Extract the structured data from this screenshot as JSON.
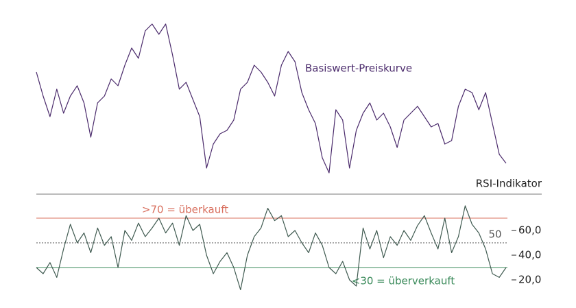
{
  "chart_data": [
    {
      "type": "line",
      "ylim": [
        0,
        250
      ],
      "series": [
        {
          "name": "Basiswert-Preiskurve",
          "color": "#4a2a6b",
          "values": [
            160,
            125,
            95,
            135,
            100,
            125,
            140,
            115,
            65,
            115,
            125,
            150,
            140,
            170,
            195,
            180,
            220,
            230,
            215,
            230,
            185,
            135,
            145,
            120,
            95,
            20,
            55,
            70,
            75,
            90,
            135,
            145,
            170,
            160,
            145,
            125,
            170,
            190,
            175,
            130,
            105,
            85,
            35,
            13,
            105,
            90,
            20,
            75,
            100,
            115,
            90,
            100,
            80,
            50,
            90,
            100,
            110,
            95,
            80,
            85,
            55,
            60,
            110,
            135,
            130,
            105,
            130,
            85,
            40,
            27
          ]
        }
      ]
    },
    {
      "type": "line",
      "title": "RSI-Indikator",
      "ylim": [
        8,
        82
      ],
      "yticks": [
        {
          "value": 20,
          "label": "20,0"
        },
        {
          "value": 40,
          "label": "40,0"
        },
        {
          "value": 60,
          "label": "60,0"
        }
      ],
      "hlines": [
        {
          "value": 70,
          "label": ">70 = überkauft",
          "color": "#d9705f",
          "style": "solid"
        },
        {
          "value": 50,
          "label": "50",
          "color": "#555555",
          "style": "dashed"
        },
        {
          "value": 30,
          "label": "<30 = überverkauft",
          "color": "#3a8a5a",
          "style": "solid"
        }
      ],
      "series": [
        {
          "color": "#3f5a50",
          "values": [
            30,
            25,
            34,
            22,
            45,
            65,
            50,
            58,
            42,
            62,
            48,
            55,
            30,
            60,
            52,
            66,
            55,
            62,
            70,
            58,
            66,
            48,
            72,
            60,
            65,
            40,
            25,
            35,
            42,
            30,
            12,
            40,
            55,
            62,
            78,
            68,
            72,
            55,
            60,
            50,
            42,
            58,
            48,
            30,
            25,
            35,
            20,
            15,
            62,
            45,
            60,
            38,
            55,
            48,
            60,
            52,
            64,
            72,
            58,
            45,
            70,
            42,
            55,
            80,
            65,
            58,
            45,
            25,
            22,
            30
          ]
        }
      ]
    }
  ]
}
